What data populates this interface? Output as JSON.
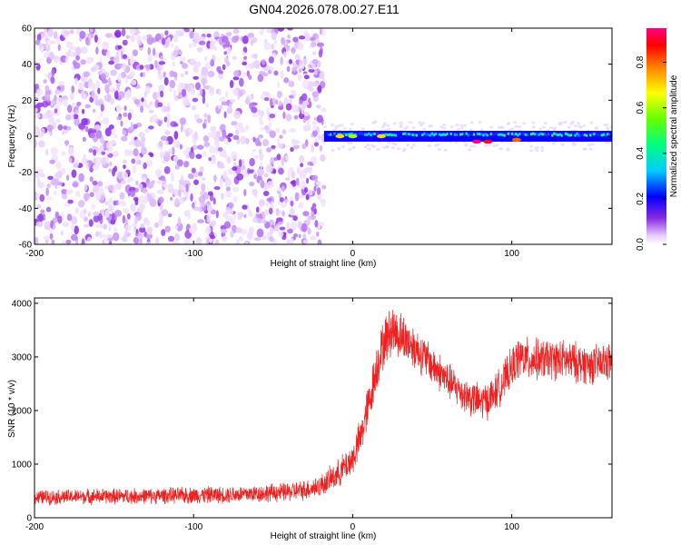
{
  "figure": {
    "title": "GN04.2026.078.00.27.E11"
  },
  "chart_data": [
    {
      "type": "heatmap",
      "panel": "spectrogram",
      "xlabel": "Height of straight line (km)",
      "ylabel": "Frequency (Hz)",
      "xlim": [
        -200,
        163
      ],
      "ylim": [
        -60,
        60
      ],
      "xticks": [
        -200,
        -100,
        0,
        100
      ],
      "yticks": [
        -60,
        -40,
        -20,
        0,
        20,
        40,
        60
      ],
      "ytick_labels": [
        "-60",
        "-40",
        "-20",
        "0",
        "20",
        "40",
        "60"
      ],
      "colorbar": {
        "label": "Normalized spectral amplitude",
        "range": [
          0.0,
          0.95
        ],
        "ticks": [
          0.0,
          0.2,
          0.4,
          0.6,
          0.8
        ],
        "tick_labels": [
          "0.0",
          "0.2",
          "0.4",
          "0.6",
          "0.8"
        ]
      },
      "regions": [
        {
          "x_range": [
            -200,
            -18
          ],
          "freq_range": [
            -60,
            60
          ],
          "pattern": "broadband speckle",
          "amplitude_range": [
            0.02,
            0.12
          ]
        },
        {
          "x_range": [
            -18,
            163
          ],
          "freq_center": 0,
          "freq_halfwidth": 3,
          "pattern": "narrowband line",
          "amplitude_range": [
            0.15,
            0.95
          ]
        }
      ],
      "hotspots": [
        {
          "x": -8,
          "freq": 0,
          "amplitude": 0.7
        },
        {
          "x": 0,
          "freq": 0,
          "amplitude": 0.6
        },
        {
          "x": 18,
          "freq": 0,
          "amplitude": 0.7
        },
        {
          "x": 78,
          "freq": -3,
          "amplitude": 0.95
        },
        {
          "x": 85,
          "freq": -3,
          "amplitude": 0.9
        },
        {
          "x": 103,
          "freq": -2,
          "amplitude": 0.8
        }
      ]
    },
    {
      "type": "line",
      "panel": "snr",
      "xlabel": "Height of straight line (km)",
      "ylabel": "SNR (10 * v/v)",
      "xlim": [
        -200,
        163
      ],
      "ylim": [
        0,
        4100
      ],
      "xticks": [
        -200,
        -100,
        0,
        100
      ],
      "yticks": [
        0,
        1000,
        2000,
        3000,
        4000
      ],
      "color": "#ee2020",
      "series": [
        {
          "x": [
            -200,
            -180,
            -160,
            -140,
            -120,
            -100,
            -80,
            -60,
            -40,
            -30,
            -20,
            -10,
            0,
            5,
            10,
            15,
            20,
            25,
            30,
            40,
            50,
            60,
            70,
            80,
            85,
            90,
            95,
            100,
            105,
            110,
            120,
            130,
            140,
            150,
            163
          ],
          "y": [
            380,
            390,
            400,
            400,
            410,
            420,
            430,
            450,
            480,
            520,
            600,
            800,
            1100,
            1500,
            2100,
            2800,
            3300,
            3500,
            3400,
            3150,
            2850,
            2550,
            2300,
            2150,
            2200,
            2350,
            2550,
            2800,
            3000,
            2950,
            2950,
            2950,
            2900,
            2850,
            2900
          ],
          "noise_amplitude": [
            130,
            130,
            140,
            140,
            140,
            150,
            150,
            160,
            170,
            180,
            200,
            240,
            300,
            350,
            400,
            430,
            450,
            450,
            430,
            380,
            350,
            330,
            320,
            330,
            330,
            330,
            340,
            350,
            380,
            380,
            360,
            360,
            360,
            350,
            350
          ]
        }
      ]
    }
  ]
}
